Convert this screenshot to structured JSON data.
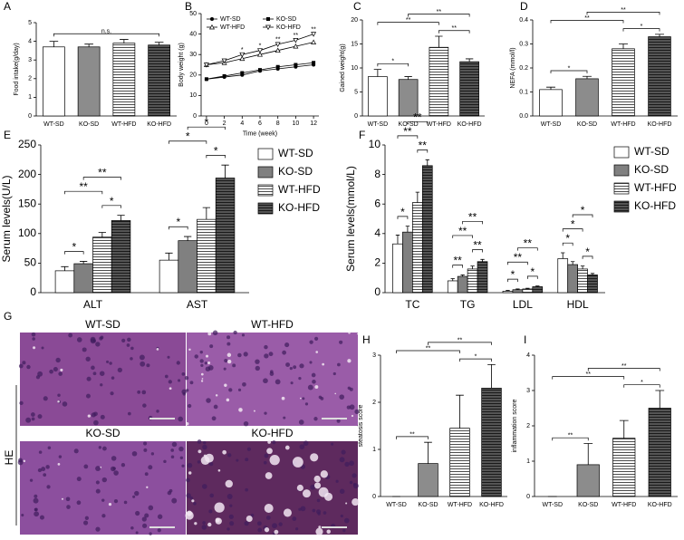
{
  "chart_data": [
    {
      "panel": "A",
      "type": "bar",
      "ylabel": "Food intake(g/day)",
      "categories": [
        "WT-SD",
        "KO-SD",
        "WT-HFD",
        "KO-HFD"
      ],
      "values": [
        3.7,
        3.7,
        3.9,
        3.8
      ],
      "errors": [
        0.3,
        0.15,
        0.2,
        0.15
      ],
      "colors": [
        "#ffffff",
        "#8c8c8c",
        "#ffffff",
        "#555555"
      ],
      "hatch": [
        false,
        false,
        true,
        true
      ],
      "ylim": [
        0,
        5
      ],
      "yticks": [
        0,
        1,
        2,
        3,
        4,
        5
      ],
      "significance": [
        {
          "pair": [
            "WT-SD",
            "KO-HFD"
          ],
          "label": "n.s."
        }
      ]
    },
    {
      "panel": "B",
      "type": "line",
      "ylabel": "Body weight (g)",
      "xlabel": "Time (week)",
      "x": [
        0,
        2,
        4,
        6,
        8,
        10,
        12
      ],
      "xlim": [
        -0.6,
        12.6
      ],
      "xticks": [
        0,
        2,
        4,
        6,
        8,
        10,
        12
      ],
      "ylim": [
        0,
        50
      ],
      "yticks": [
        0,
        10,
        20,
        30,
        40,
        50
      ],
      "legend": "top-left",
      "series": [
        {
          "name": "WT-SD",
          "color": "#000000",
          "marker": "circle",
          "values": [
            18,
            19,
            20,
            22,
            23,
            24,
            25
          ]
        },
        {
          "name": "KO-SD",
          "color": "#000000",
          "marker": "square",
          "values": [
            18,
            19.5,
            21,
            22.5,
            24,
            25,
            26
          ]
        },
        {
          "name": "WT-HFD",
          "color": "#000000",
          "marker": "triangle",
          "values": [
            25,
            26,
            28,
            30,
            32,
            34,
            36
          ]
        },
        {
          "name": "KO-HFD",
          "color": "#000000",
          "marker": "triangle-down",
          "values": [
            25,
            27,
            30,
            32,
            35,
            37,
            40
          ]
        }
      ],
      "significance": [
        {
          "x": 4,
          "label": "*"
        },
        {
          "x": 6,
          "label": "*"
        },
        {
          "x": 8,
          "label": "**"
        },
        {
          "x": 10,
          "label": "**"
        },
        {
          "x": 12,
          "label": "**"
        }
      ]
    },
    {
      "panel": "C",
      "type": "bar",
      "ylabel": "Gained weight(g)",
      "categories": [
        "WT-SD",
        "KO-SD",
        "WT-HFD",
        "KO-HFD"
      ],
      "values": [
        8.2,
        7.6,
        14.3,
        11.3
      ],
      "errors": [
        1.5,
        0.6,
        2.3,
        0.6
      ],
      "colors": [
        "#ffffff",
        "#8c8c8c",
        "#ffffff",
        "#555555"
      ],
      "hatch": [
        false,
        false,
        true,
        true
      ],
      "ylim": [
        0,
        20
      ],
      "yticks": [
        0,
        5,
        10,
        15,
        20
      ],
      "significance": [
        {
          "pair": [
            "WT-SD",
            "KO-SD"
          ],
          "label": "*"
        },
        {
          "pair": [
            "WT-HFD",
            "KO-HFD"
          ],
          "label": "**"
        },
        {
          "pair": [
            "WT-SD",
            "WT-HFD"
          ],
          "label": "**"
        },
        {
          "pair": [
            "KO-SD",
            "KO-HFD"
          ],
          "label": "**"
        }
      ]
    },
    {
      "panel": "D",
      "type": "bar",
      "ylabel": "NEFA (mmol/l)",
      "categories": [
        "WT-SD",
        "KO-SD",
        "WT-HFD",
        "KO-HFD"
      ],
      "values": [
        0.11,
        0.155,
        0.28,
        0.33
      ],
      "errors": [
        0.01,
        0.01,
        0.02,
        0.01
      ],
      "colors": [
        "#ffffff",
        "#8c8c8c",
        "#ffffff",
        "#555555"
      ],
      "hatch": [
        false,
        false,
        true,
        true
      ],
      "ylim": [
        0,
        0.4
      ],
      "yticks": [
        {
          "value": 0,
          "label": "0.0"
        },
        0.1,
        0.2,
        0.3,
        0.4
      ],
      "significance": [
        {
          "pair": [
            "WT-SD",
            "KO-SD"
          ],
          "label": "*"
        },
        {
          "pair": [
            "WT-HFD",
            "KO-HFD"
          ],
          "label": "*"
        },
        {
          "pair": [
            "WT-SD",
            "WT-HFD"
          ],
          "label": "**"
        },
        {
          "pair": [
            "KO-SD",
            "KO-HFD"
          ],
          "label": "**"
        }
      ]
    },
    {
      "panel": "E",
      "type": "bar",
      "ylabel": "Serum levels(U/L)",
      "categories": [
        "ALT",
        "AST"
      ],
      "ylim": [
        0,
        250
      ],
      "yticks": [
        0,
        50,
        100,
        150,
        200,
        250
      ],
      "legend": "right",
      "series": [
        {
          "name": "WT-SD",
          "color": "#ffffff",
          "hatch": false,
          "values": [
            37,
            55
          ],
          "errors": [
            7,
            12
          ]
        },
        {
          "name": "KO-SD",
          "color": "#808080",
          "hatch": false,
          "values": [
            49,
            88
          ],
          "errors": [
            4,
            7
          ]
        },
        {
          "name": "WT-HFD",
          "color": "#ffffff",
          "hatch": true,
          "values": [
            94,
            124
          ],
          "errors": [
            8,
            20
          ]
        },
        {
          "name": "KO-HFD",
          "color": "#555555",
          "hatch": true,
          "values": [
            122,
            194
          ],
          "errors": [
            9,
            22
          ]
        }
      ],
      "significance": [
        {
          "category": "ALT",
          "pair": [
            "WT-SD",
            "KO-SD"
          ],
          "label": "*"
        },
        {
          "category": "ALT",
          "pair": [
            "WT-HFD",
            "KO-HFD"
          ],
          "label": "*"
        },
        {
          "category": "ALT",
          "pair": [
            "WT-SD",
            "WT-HFD"
          ],
          "label": "**"
        },
        {
          "category": "ALT",
          "pair": [
            "KO-SD",
            "KO-HFD"
          ],
          "label": "**"
        },
        {
          "category": "AST",
          "pair": [
            "WT-SD",
            "KO-SD"
          ],
          "label": "*"
        },
        {
          "category": "AST",
          "pair": [
            "WT-HFD",
            "KO-HFD"
          ],
          "label": "*"
        },
        {
          "category": "AST",
          "pair": [
            "WT-SD",
            "WT-HFD"
          ],
          "label": "*"
        },
        {
          "category": "AST",
          "pair": [
            "KO-SD",
            "KO-HFD"
          ],
          "label": "*"
        }
      ]
    },
    {
      "panel": "F",
      "type": "bar",
      "ylabel": "Serum levels(mmol/L)",
      "categories": [
        "TC",
        "TG",
        "LDL",
        "HDL"
      ],
      "ylim": [
        0,
        10
      ],
      "yticks": [
        0,
        2,
        4,
        6,
        8,
        10
      ],
      "legend": "right",
      "series": [
        {
          "name": "WT-SD",
          "color": "#ffffff",
          "hatch": false,
          "values": [
            3.3,
            0.8,
            0.1,
            2.3
          ],
          "errors": [
            0.6,
            0.15,
            0.05,
            0.4
          ]
        },
        {
          "name": "KO-SD",
          "color": "#808080",
          "hatch": false,
          "values": [
            4.1,
            1.1,
            0.2,
            1.9
          ],
          "errors": [
            0.4,
            0.1,
            0.05,
            0.2
          ]
        },
        {
          "name": "WT-HFD",
          "color": "#ffffff",
          "hatch": true,
          "values": [
            6.1,
            1.6,
            0.25,
            1.6
          ],
          "errors": [
            0.7,
            0.2,
            0.05,
            0.2
          ]
        },
        {
          "name": "KO-HFD",
          "color": "#555555",
          "hatch": true,
          "values": [
            8.6,
            2.1,
            0.4,
            1.2
          ],
          "errors": [
            0.4,
            0.15,
            0.05,
            0.1
          ]
        }
      ],
      "significance": [
        {
          "category": "TC",
          "pair": [
            "WT-SD",
            "KO-SD"
          ],
          "label": "*"
        },
        {
          "category": "TC",
          "pair": [
            "WT-HFD",
            "KO-HFD"
          ],
          "label": "**"
        },
        {
          "category": "TC",
          "pair": [
            "WT-SD",
            "WT-HFD"
          ],
          "label": "**"
        },
        {
          "category": "TC",
          "pair": [
            "KO-SD",
            "KO-HFD"
          ],
          "label": "**"
        },
        {
          "category": "TG",
          "pair": [
            "WT-SD",
            "KO-SD"
          ],
          "label": "**"
        },
        {
          "category": "TG",
          "pair": [
            "WT-HFD",
            "KO-HFD"
          ],
          "label": "**"
        },
        {
          "category": "TG",
          "pair": [
            "WT-SD",
            "WT-HFD"
          ],
          "label": "**"
        },
        {
          "category": "TG",
          "pair": [
            "KO-SD",
            "KO-HFD"
          ],
          "label": "**"
        },
        {
          "category": "LDL",
          "pair": [
            "WT-SD",
            "KO-SD"
          ],
          "label": "*"
        },
        {
          "category": "LDL",
          "pair": [
            "WT-HFD",
            "KO-HFD"
          ],
          "label": "*"
        },
        {
          "category": "LDL",
          "pair": [
            "WT-SD",
            "WT-HFD"
          ],
          "label": "**"
        },
        {
          "category": "LDL",
          "pair": [
            "KO-SD",
            "KO-HFD"
          ],
          "label": "**"
        },
        {
          "category": "HDL",
          "pair": [
            "WT-SD",
            "KO-SD"
          ],
          "label": "*"
        },
        {
          "category": "HDL",
          "pair": [
            "WT-HFD",
            "KO-HFD"
          ],
          "label": "*"
        },
        {
          "category": "HDL",
          "pair": [
            "WT-SD",
            "WT-HFD"
          ],
          "label": "*"
        },
        {
          "category": "HDL",
          "pair": [
            "KO-SD",
            "KO-HFD"
          ],
          "label": "*"
        }
      ]
    },
    {
      "panel": "G",
      "type": "image",
      "stain": "HE",
      "labels": [
        "WT-SD",
        "WT-HFD",
        "KO-SD",
        "KO-HFD"
      ]
    },
    {
      "panel": "H",
      "type": "bar",
      "ylabel": "steatosis score",
      "categories": [
        "WT-SD",
        "KO-SD",
        "WT-HFD",
        "KO-HFD"
      ],
      "values": [
        0,
        0.7,
        1.45,
        2.3
      ],
      "errors": [
        0,
        0.45,
        0.7,
        0.5
      ],
      "colors": [
        "#ffffff",
        "#8c8c8c",
        "#ffffff",
        "#555555"
      ],
      "hatch": [
        false,
        false,
        true,
        true
      ],
      "ylim": [
        0,
        3
      ],
      "yticks": [
        0,
        1,
        2,
        3
      ],
      "significance": [
        {
          "pair": [
            "WT-SD",
            "KO-SD"
          ],
          "label": "**"
        },
        {
          "pair": [
            "WT-HFD",
            "KO-HFD"
          ],
          "label": "*"
        },
        {
          "pair": [
            "WT-SD",
            "WT-HFD"
          ],
          "label": "**"
        },
        {
          "pair": [
            "KO-SD",
            "KO-HFD"
          ],
          "label": "**"
        }
      ]
    },
    {
      "panel": "I",
      "type": "bar",
      "ylabel": "inflammation score",
      "categories": [
        "WT-SD",
        "KO-SD",
        "WT-HFD",
        "KO-HFD"
      ],
      "values": [
        0,
        0.9,
        1.65,
        2.5
      ],
      "errors": [
        0,
        0.6,
        0.5,
        0.5
      ],
      "colors": [
        "#ffffff",
        "#8c8c8c",
        "#ffffff",
        "#555555"
      ],
      "hatch": [
        false,
        false,
        true,
        true
      ],
      "ylim": [
        0,
        4
      ],
      "yticks": [
        0,
        1,
        2,
        3,
        4
      ],
      "significance": [
        {
          "pair": [
            "WT-SD",
            "KO-SD"
          ],
          "label": "**"
        },
        {
          "pair": [
            "WT-HFD",
            "KO-HFD"
          ],
          "label": "*"
        },
        {
          "pair": [
            "WT-SD",
            "WT-HFD"
          ],
          "label": "**"
        },
        {
          "pair": [
            "KO-SD",
            "KO-HFD"
          ],
          "label": "**"
        }
      ]
    }
  ]
}
